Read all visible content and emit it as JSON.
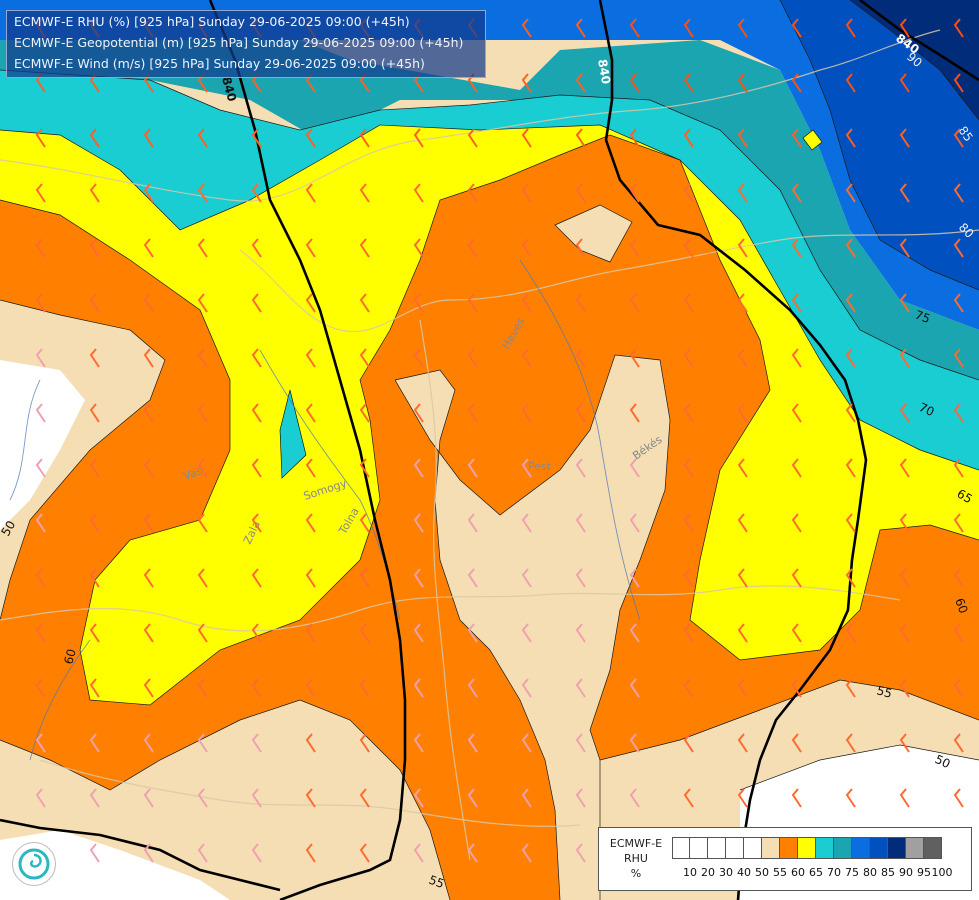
{
  "header": {
    "line1": "ECMWF-E RHU (%) [925 hPa] Sunday 29-06-2025 09:00 (+45h)",
    "line2": "ECMWF-E Geopotential (m) [925 hPa] Sunday 29-06-2025 09:00 (+45h)",
    "line3": "ECMWF-E Wind (m/s) [925 hPa] Sunday 29-06-2025 09:00 (+45h)"
  },
  "legend": {
    "name": "ECMWF-E",
    "var": "RHU",
    "unit": "%",
    "ticks": [
      "10",
      "20",
      "30",
      "40",
      "50",
      "55",
      "60",
      "65",
      "70",
      "75",
      "80",
      "85",
      "90",
      "95",
      "100"
    ],
    "colors": [
      "#ffffff",
      "#ffffff",
      "#ffffff",
      "#ffffff",
      "#ffffff",
      "#f5deb3",
      "#ff8000",
      "#ffff00",
      "#19cdd2",
      "#1aa5b0",
      "#0a6ee0",
      "#0050c0",
      "#002c7a",
      "#a0a0a0",
      "#606060"
    ]
  },
  "contours": {
    "rhu_labels": [
      "50",
      "60",
      "55",
      "50",
      "55",
      "60",
      "65",
      "70",
      "75",
      "80",
      "85",
      "90"
    ],
    "geo_labels": [
      "840",
      "840",
      "840"
    ]
  },
  "regions": [
    "Heves",
    "Pest",
    "Békés",
    "Vas",
    "Zala",
    "Somogy",
    "Tolna"
  ],
  "logo_icon": "ecmwf-swirl-icon",
  "colors": {
    "white": "#ffffff",
    "tan": "#f5deb3",
    "orange": "#ff8000",
    "yellow": "#ffff00",
    "cyan": "#19cdd2",
    "teal": "#1aa5b0",
    "blue": "#0a6ee0",
    "darkblue": "#0050c0",
    "navy": "#002c7a"
  }
}
